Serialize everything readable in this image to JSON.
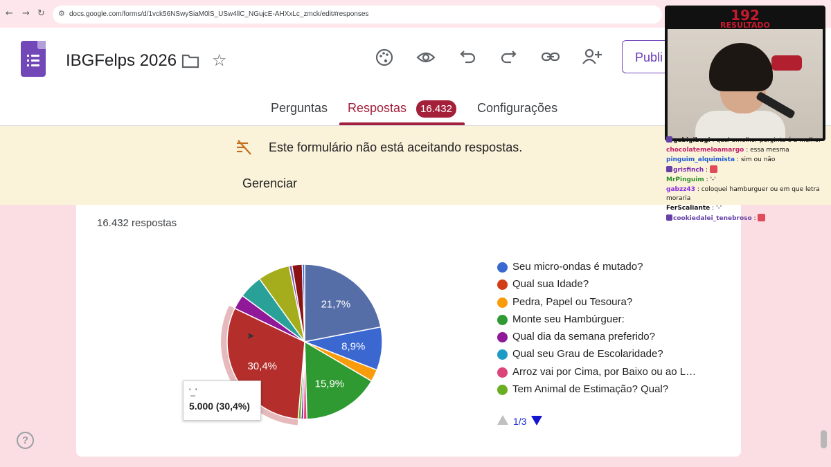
{
  "browser": {
    "back_icon": "arrow-left",
    "forward_icon": "arrow-right",
    "reload_icon": "reload",
    "url": "docs.google.com/forms/d/1vck56NSwySiaM0lS_USw4llC_NGujcE-AHXxLc_zmck/edit#responses"
  },
  "header": {
    "title": "IBGFelps 2026",
    "publish_label": "Publi",
    "tabs": [
      {
        "label": "Perguntas"
      },
      {
        "label": "Respostas",
        "badge": "16.432"
      },
      {
        "label": "Configurações"
      }
    ],
    "accent_color": "#a31f3a",
    "logo_color": "#7248b9"
  },
  "banner": {
    "message": "Este formulário não está aceitando respostas.",
    "action": "Gerenciar"
  },
  "summary": {
    "response_count": "16.432 respostas",
    "tooltip_title": "'_'",
    "tooltip_value": "5.000 (30,4%)",
    "pager": "1/3"
  },
  "chart_data": {
    "type": "pie",
    "slices": [
      {
        "label": "'_'",
        "percent": 30.4,
        "display": "30,4%",
        "color": "#b42e2c"
      },
      {
        "label": "",
        "percent": 21.7,
        "display": "21,7%",
        "color": "#566ea8"
      },
      {
        "label": "Seu micro-ondas é mutado?",
        "percent": 8.9,
        "display": "8,9%",
        "color": "#3b67d1"
      },
      {
        "label": "Monte seu Hambúrguer:",
        "percent": 15.9,
        "display": "15,9%",
        "color": "#2f9a31"
      }
    ],
    "legend": [
      {
        "label": "Seu micro-ondas é mutado?",
        "color": "#3b67d1"
      },
      {
        "label": "Qual sua Idade?",
        "color": "#d23c17"
      },
      {
        "label": "Pedra, Papel ou Tesoura?",
        "color": "#f99c0c"
      },
      {
        "label": "Monte seu Hambúrguer:",
        "color": "#2f9a31"
      },
      {
        "label": "Qual dia da semana preferido?",
        "color": "#90199a"
      },
      {
        "label": "Qual seu Grau de Escolaridade?",
        "color": "#1c9bc5"
      },
      {
        "label": "Arroz vai por Cima, por Baixo ou ao L…",
        "color": "#dc4379"
      },
      {
        "label": "Tem Animal de Estimação? Qual?",
        "color": "#6aaf23"
      }
    ],
    "legend_position": "right"
  },
  "stream": {
    "count": "192",
    "label": "RESULTADO",
    "chat": [
      {
        "user": "gabigibagi",
        "message": "qual amelhor perginta é a melhor",
        "color": "#111111",
        "badge": true,
        "emote": false
      },
      {
        "user": "chocolatemeloamargo",
        "message": "essa mesma",
        "color": "#c0216b",
        "badge": false,
        "emote": false
      },
      {
        "user": "pinguim_alquimista",
        "message": "sim ou não",
        "color": "#1e5bd6",
        "badge": false,
        "emote": false
      },
      {
        "user": "grisfinch",
        "message": "",
        "color": "#7a2bb3",
        "badge": true,
        "emote": true
      },
      {
        "user": "MrPinguim",
        "message": "'-'",
        "color": "#2d8c2d",
        "badge": false,
        "emote": false
      },
      {
        "user": "gabzz43",
        "message": "coloquei hamburguer ou em que letra moraria",
        "color": "#8a2be2",
        "badge": false,
        "emote": false
      },
      {
        "user": "FerScaliante",
        "message": "'-'",
        "color": "#111111",
        "badge": false,
        "emote": false
      },
      {
        "user": "cookiedalei_tenebroso",
        "message": "",
        "color": "#6441a5",
        "badge": true,
        "emote": true
      }
    ]
  }
}
